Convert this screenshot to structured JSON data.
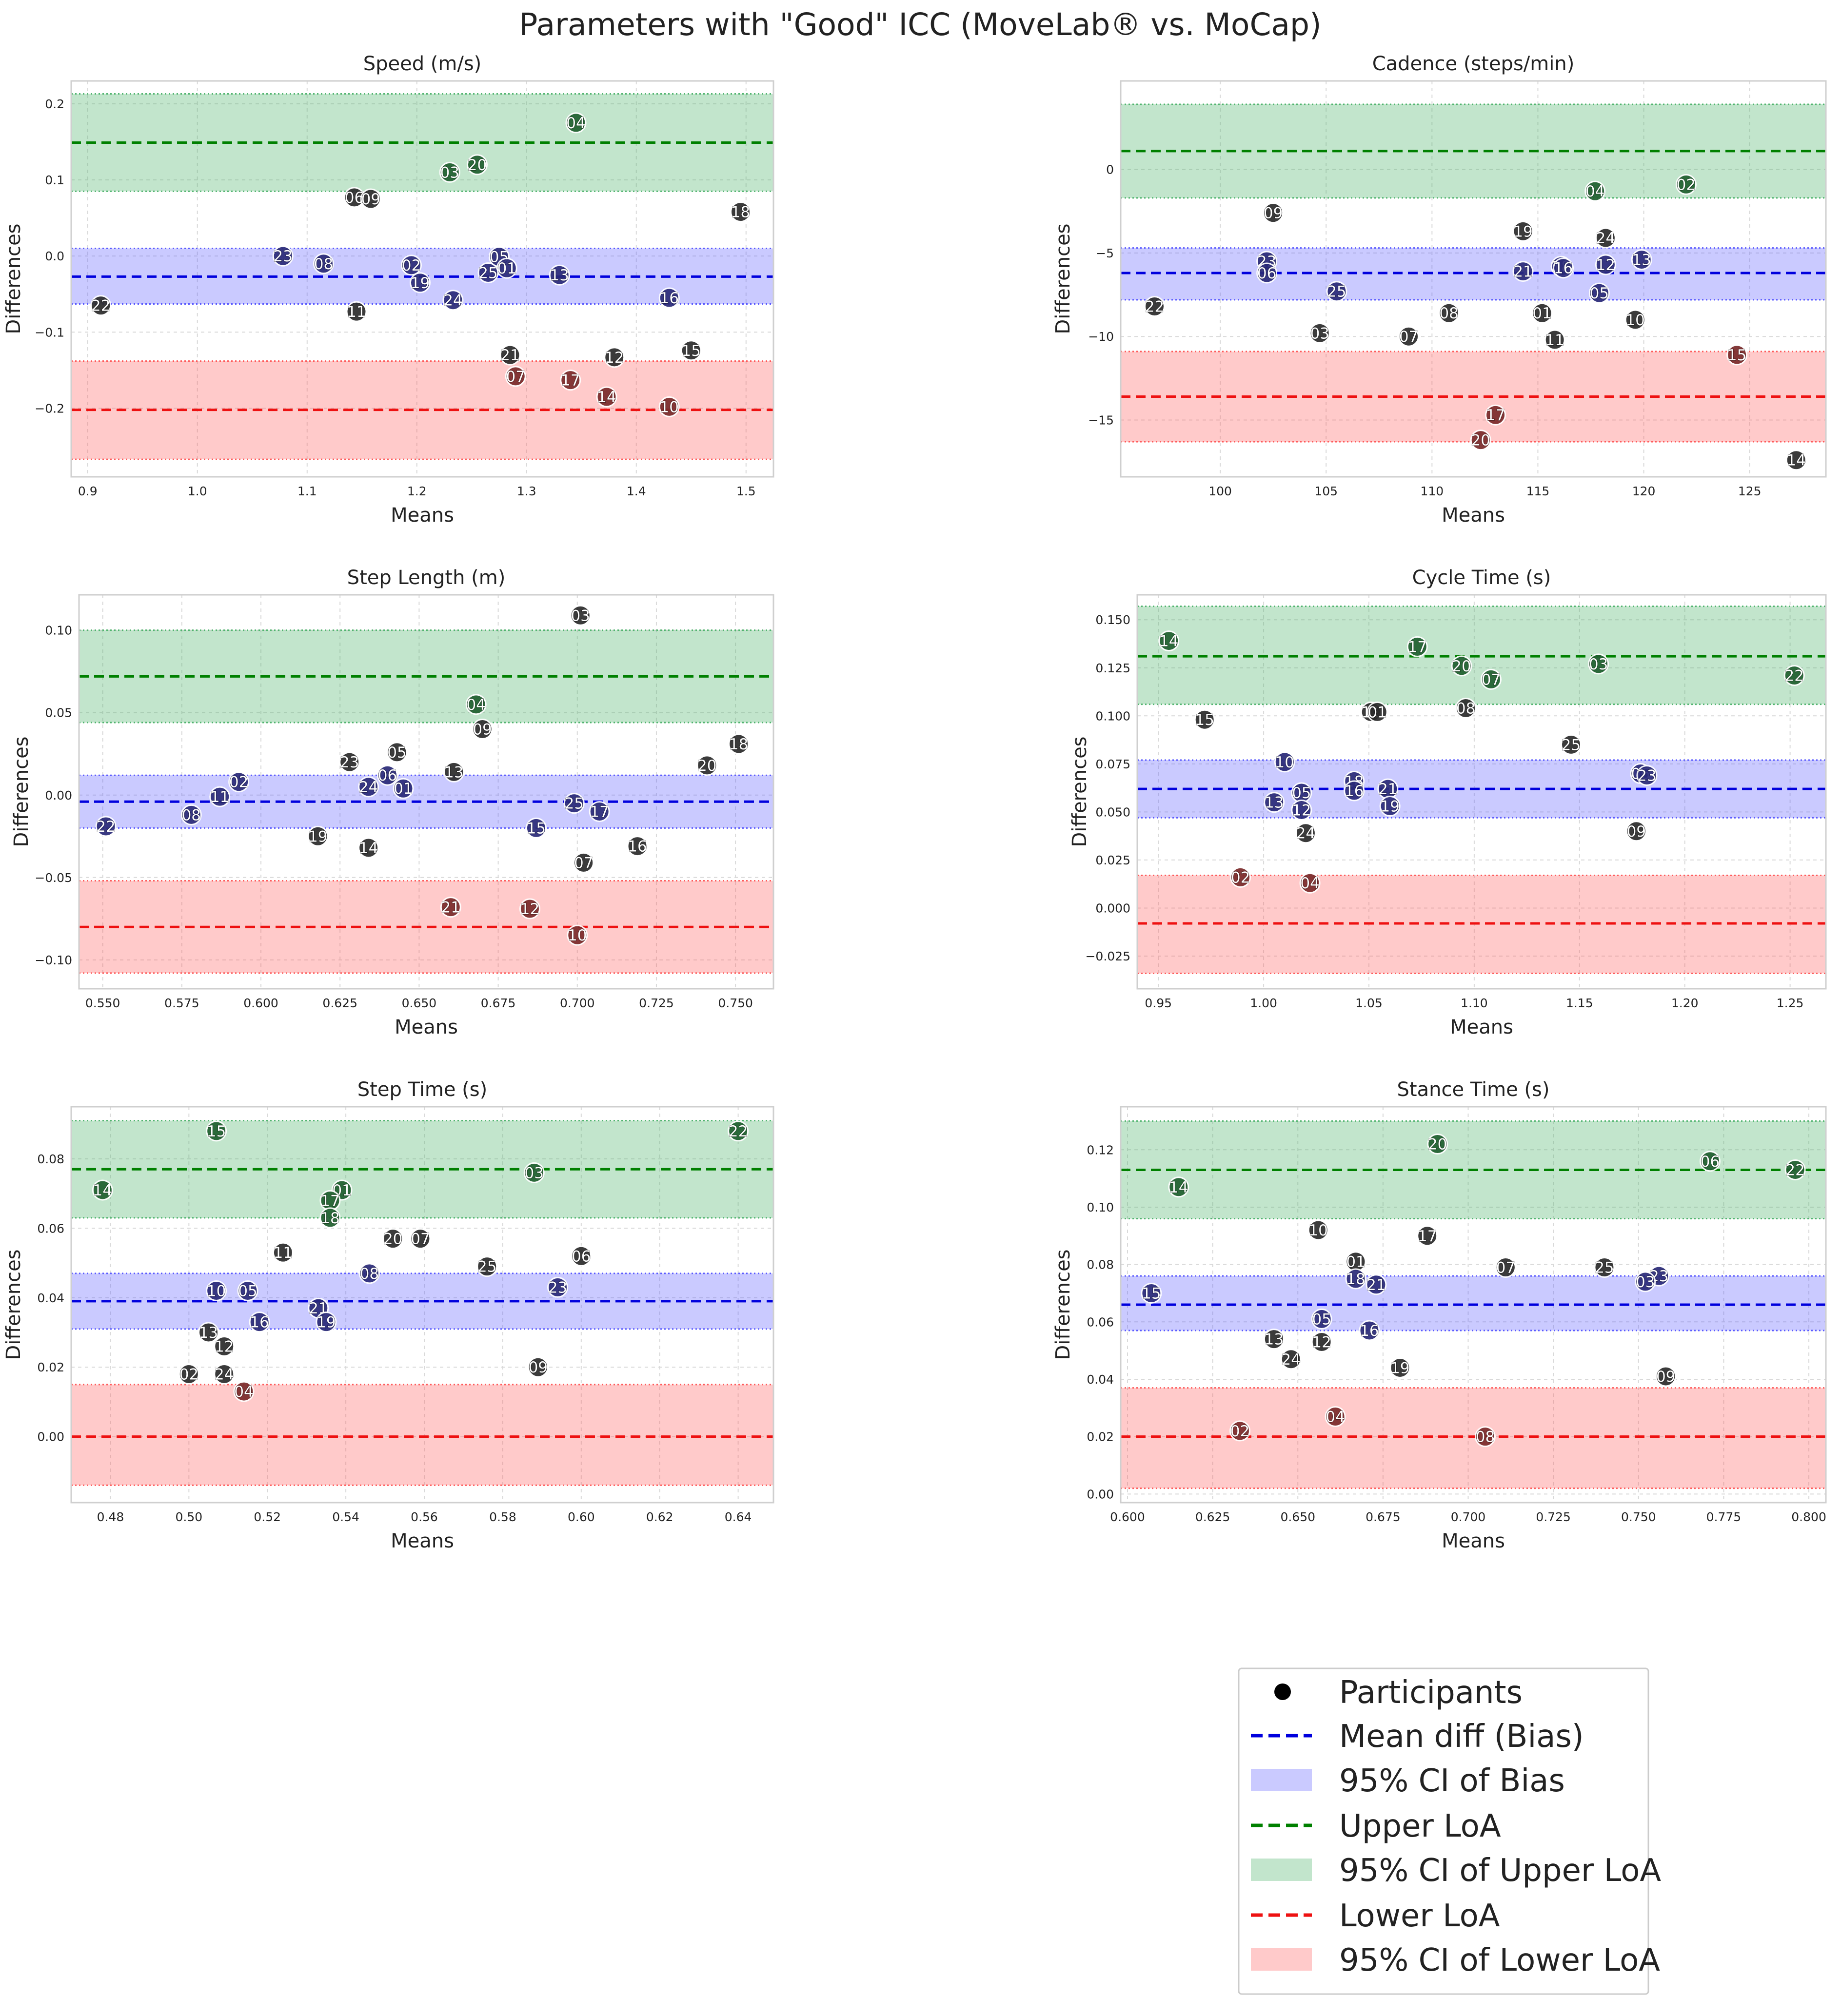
{
  "figure_title": "Parameters with \"Good\" ICC (MoveLab® vs. MoCap)",
  "colors": {
    "upper_line": "#008000",
    "upper_band": "rgba(80,180,110,0.35)",
    "bias_line": "#0000dd",
    "bias_band": "rgba(90,90,255,0.32)",
    "lower_line": "#ee1111",
    "lower_band": "rgba(255,90,90,0.32)",
    "point": "#2b2b2b",
    "point_green": "#1f5f2e",
    "point_blue": "#2a2a78",
    "point_red": "#7a2a2a"
  },
  "legend": {
    "participants": "Participants",
    "bias": "Mean diff (Bias)",
    "bias_ci": "95% CI of Bias",
    "upper": "Upper LoA",
    "upper_ci": "95% CI of Upper LoA",
    "lower": "Lower LoA",
    "lower_ci": "95% CI of Lower LoA"
  },
  "chart_data": [
    {
      "type": "scatter",
      "title": "Speed (m/s)",
      "xlabel": "Means",
      "ylabel": "Differences",
      "xlim": [
        0.885,
        1.525
      ],
      "ylim": [
        -0.29,
        0.23
      ],
      "xticks": [
        0.9,
        1.0,
        1.1,
        1.2,
        1.3,
        1.4,
        1.5
      ],
      "xtick_labels": [
        "0.9",
        "1.0",
        "1.1",
        "1.2",
        "1.3",
        "1.4",
        "1.5"
      ],
      "yticks": [
        -0.2,
        -0.1,
        0.0,
        0.1,
        0.2
      ],
      "ytick_labels": [
        "−0.2",
        "−0.1",
        "0.0",
        "0.1",
        "0.2"
      ],
      "upper_loa": 0.149,
      "upper_ci": [
        0.085,
        0.213
      ],
      "bias": -0.027,
      "bias_ci": [
        -0.063,
        0.01
      ],
      "lower_loa": -0.202,
      "lower_ci": [
        -0.267,
        -0.138
      ],
      "points": [
        {
          "id": "04",
          "x": 1.345,
          "y": 0.175
        },
        {
          "id": "20",
          "x": 1.255,
          "y": 0.12
        },
        {
          "id": "03",
          "x": 1.23,
          "y": 0.11
        },
        {
          "id": "06",
          "x": 1.143,
          "y": 0.077
        },
        {
          "id": "09",
          "x": 1.158,
          "y": 0.075
        },
        {
          "id": "18",
          "x": 1.495,
          "y": 0.058
        },
        {
          "id": "23",
          "x": 1.078,
          "y": 0.0
        },
        {
          "id": "08",
          "x": 1.115,
          "y": -0.01
        },
        {
          "id": "02",
          "x": 1.195,
          "y": -0.012
        },
        {
          "id": "05",
          "x": 1.275,
          "y": -0.001
        },
        {
          "id": "01",
          "x": 1.282,
          "y": -0.016
        },
        {
          "id": "25",
          "x": 1.265,
          "y": -0.022
        },
        {
          "id": "13",
          "x": 1.33,
          "y": -0.025
        },
        {
          "id": "19",
          "x": 1.203,
          "y": -0.035
        },
        {
          "id": "24",
          "x": 1.233,
          "y": -0.058
        },
        {
          "id": "16",
          "x": 1.43,
          "y": -0.055
        },
        {
          "id": "22",
          "x": 0.912,
          "y": -0.065
        },
        {
          "id": "11",
          "x": 1.145,
          "y": -0.073
        },
        {
          "id": "21",
          "x": 1.285,
          "y": -0.13
        },
        {
          "id": "07",
          "x": 1.29,
          "y": -0.158
        },
        {
          "id": "17",
          "x": 1.34,
          "y": -0.163
        },
        {
          "id": "12",
          "x": 1.38,
          "y": -0.133
        },
        {
          "id": "15",
          "x": 1.45,
          "y": -0.124
        },
        {
          "id": "14",
          "x": 1.373,
          "y": -0.185
        },
        {
          "id": "10",
          "x": 1.43,
          "y": -0.198
        }
      ]
    },
    {
      "type": "scatter",
      "title": "Cadence (steps/min)",
      "xlabel": "Means",
      "ylabel": "Differences",
      "xlim": [
        95.3,
        128.6
      ],
      "ylim": [
        -18.4,
        5.3
      ],
      "xticks": [
        100,
        105,
        110,
        115,
        120,
        125
      ],
      "xtick_labels": [
        "100",
        "105",
        "110",
        "115",
        "120",
        "125"
      ],
      "yticks": [
        -15,
        -10,
        -5,
        0
      ],
      "ytick_labels": [
        "−15",
        "−10",
        "−5",
        "0"
      ],
      "upper_loa": 1.1,
      "upper_ci": [
        -1.7,
        3.9
      ],
      "bias": -6.2,
      "bias_ci": [
        -7.8,
        -4.7
      ],
      "lower_loa": -13.6,
      "lower_ci": [
        -16.3,
        -10.9
      ],
      "points": [
        {
          "id": "04",
          "x": 117.7,
          "y": -1.3
        },
        {
          "id": "02",
          "x": 122.0,
          "y": -0.9
        },
        {
          "id": "09",
          "x": 102.5,
          "y": -2.6
        },
        {
          "id": "19",
          "x": 114.3,
          "y": -3.7
        },
        {
          "id": "24",
          "x": 118.2,
          "y": -4.1
        },
        {
          "id": "23",
          "x": 102.2,
          "y": -5.5
        },
        {
          "id": "13",
          "x": 119.9,
          "y": -5.4
        },
        {
          "id": "12",
          "x": 118.2,
          "y": -5.7
        },
        {
          "id": "18",
          "x": 116.1,
          "y": -5.8
        },
        {
          "id": "16",
          "x": 116.2,
          "y": -5.9
        },
        {
          "id": "21",
          "x": 114.3,
          "y": -6.1
        },
        {
          "id": "06",
          "x": 102.2,
          "y": -6.2
        },
        {
          "id": "25",
          "x": 105.5,
          "y": -7.3
        },
        {
          "id": "05",
          "x": 117.9,
          "y": -7.4
        },
        {
          "id": "22",
          "x": 96.9,
          "y": -8.2
        },
        {
          "id": "08",
          "x": 110.8,
          "y": -8.6
        },
        {
          "id": "01",
          "x": 115.2,
          "y": -8.6
        },
        {
          "id": "10",
          "x": 119.6,
          "y": -9.0
        },
        {
          "id": "03",
          "x": 104.7,
          "y": -9.8
        },
        {
          "id": "07",
          "x": 108.9,
          "y": -10.0
        },
        {
          "id": "11",
          "x": 115.8,
          "y": -10.2
        },
        {
          "id": "15",
          "x": 124.4,
          "y": -11.1
        },
        {
          "id": "17",
          "x": 113.0,
          "y": -14.7
        },
        {
          "id": "20",
          "x": 112.3,
          "y": -16.2
        },
        {
          "id": "14",
          "x": 127.2,
          "y": -17.4
        }
      ]
    },
    {
      "type": "scatter",
      "title": "Step Length (m)",
      "xlabel": "Means",
      "ylabel": "Differences",
      "xlim": [
        0.5425,
        0.762
      ],
      "ylim": [
        -0.1175,
        0.1215
      ],
      "xticks": [
        0.55,
        0.575,
        0.6,
        0.625,
        0.65,
        0.675,
        0.7,
        0.725,
        0.75
      ],
      "xtick_labels": [
        "0.550",
        "0.575",
        "0.600",
        "0.625",
        "0.650",
        "0.675",
        "0.700",
        "0.725",
        "0.750"
      ],
      "yticks": [
        -0.1,
        -0.05,
        0.0,
        0.05,
        0.1
      ],
      "ytick_labels": [
        "−0.10",
        "−0.05",
        "0.00",
        "0.05",
        "0.10"
      ],
      "upper_loa": 0.072,
      "upper_ci": [
        0.044,
        0.1
      ],
      "bias": -0.004,
      "bias_ci": [
        -0.02,
        0.012
      ],
      "lower_loa": -0.08,
      "lower_ci": [
        -0.108,
        -0.052
      ],
      "points": [
        {
          "id": "03",
          "x": 0.701,
          "y": 0.109
        },
        {
          "id": "04",
          "x": 0.668,
          "y": 0.055
        },
        {
          "id": "09",
          "x": 0.67,
          "y": 0.04
        },
        {
          "id": "18",
          "x": 0.751,
          "y": 0.031
        },
        {
          "id": "05",
          "x": 0.643,
          "y": 0.026
        },
        {
          "id": "23",
          "x": 0.628,
          "y": 0.02
        },
        {
          "id": "20",
          "x": 0.741,
          "y": 0.018
        },
        {
          "id": "13",
          "x": 0.661,
          "y": 0.014
        },
        {
          "id": "06",
          "x": 0.64,
          "y": 0.012
        },
        {
          "id": "02",
          "x": 0.593,
          "y": 0.008
        },
        {
          "id": "24",
          "x": 0.634,
          "y": 0.005
        },
        {
          "id": "01",
          "x": 0.645,
          "y": 0.004
        },
        {
          "id": "11",
          "x": 0.587,
          "y": -0.001
        },
        {
          "id": "25",
          "x": 0.699,
          "y": -0.005
        },
        {
          "id": "17",
          "x": 0.707,
          "y": -0.01
        },
        {
          "id": "08",
          "x": 0.578,
          "y": -0.012
        },
        {
          "id": "22",
          "x": 0.551,
          "y": -0.019
        },
        {
          "id": "15",
          "x": 0.687,
          "y": -0.02
        },
        {
          "id": "19",
          "x": 0.618,
          "y": -0.025
        },
        {
          "id": "14",
          "x": 0.634,
          "y": -0.032
        },
        {
          "id": "16",
          "x": 0.719,
          "y": -0.031
        },
        {
          "id": "07",
          "x": 0.702,
          "y": -0.041
        },
        {
          "id": "21",
          "x": 0.66,
          "y": -0.068
        },
        {
          "id": "12",
          "x": 0.685,
          "y": -0.069
        },
        {
          "id": "10",
          "x": 0.7,
          "y": -0.085
        }
      ]
    },
    {
      "type": "scatter",
      "title": "Cycle Time (s)",
      "xlabel": "Means",
      "ylabel": "Differences",
      "xlim": [
        0.94,
        1.267
      ],
      "ylim": [
        -0.042,
        0.163
      ],
      "xticks": [
        0.95,
        1.0,
        1.05,
        1.1,
        1.15,
        1.2,
        1.25
      ],
      "xtick_labels": [
        "0.95",
        "1.00",
        "1.05",
        "1.10",
        "1.15",
        "1.20",
        "1.25"
      ],
      "yticks": [
        -0.025,
        0.0,
        0.025,
        0.05,
        0.075,
        0.1,
        0.125,
        0.15
      ],
      "ytick_labels": [
        "−0.025",
        "0.000",
        "0.025",
        "0.050",
        "0.075",
        "0.100",
        "0.125",
        "0.150"
      ],
      "upper_loa": 0.131,
      "upper_ci": [
        0.106,
        0.157
      ],
      "bias": 0.062,
      "bias_ci": [
        0.047,
        0.077
      ],
      "lower_loa": -0.008,
      "lower_ci": [
        -0.034,
        0.017
      ],
      "points": [
        {
          "id": "14",
          "x": 0.955,
          "y": 0.139
        },
        {
          "id": "17",
          "x": 1.073,
          "y": 0.136
        },
        {
          "id": "20",
          "x": 1.094,
          "y": 0.126
        },
        {
          "id": "03",
          "x": 1.159,
          "y": 0.127
        },
        {
          "id": "07",
          "x": 1.108,
          "y": 0.119
        },
        {
          "id": "22",
          "x": 1.252,
          "y": 0.121
        },
        {
          "id": "11",
          "x": 1.051,
          "y": 0.102
        },
        {
          "id": "01",
          "x": 1.054,
          "y": 0.102
        },
        {
          "id": "08",
          "x": 1.096,
          "y": 0.104
        },
        {
          "id": "15",
          "x": 0.972,
          "y": 0.098
        },
        {
          "id": "25",
          "x": 1.146,
          "y": 0.085
        },
        {
          "id": "10",
          "x": 1.01,
          "y": 0.076
        },
        {
          "id": "06",
          "x": 1.179,
          "y": 0.07
        },
        {
          "id": "23",
          "x": 1.182,
          "y": 0.069
        },
        {
          "id": "18",
          "x": 1.043,
          "y": 0.066
        },
        {
          "id": "16",
          "x": 1.043,
          "y": 0.061
        },
        {
          "id": "21",
          "x": 1.059,
          "y": 0.062
        },
        {
          "id": "05",
          "x": 1.018,
          "y": 0.06
        },
        {
          "id": "13",
          "x": 1.005,
          "y": 0.055
        },
        {
          "id": "12",
          "x": 1.018,
          "y": 0.051
        },
        {
          "id": "19",
          "x": 1.06,
          "y": 0.053
        },
        {
          "id": "24",
          "x": 1.02,
          "y": 0.039
        },
        {
          "id": "09",
          "x": 1.177,
          "y": 0.04
        },
        {
          "id": "02",
          "x": 0.989,
          "y": 0.016
        },
        {
          "id": "04",
          "x": 1.022,
          "y": 0.013
        }
      ]
    },
    {
      "type": "scatter",
      "title": "Step Time (s)",
      "xlabel": "Means",
      "ylabel": "Differences",
      "xlim": [
        0.47,
        0.649
      ],
      "ylim": [
        -0.019,
        0.095
      ],
      "xticks": [
        0.48,
        0.5,
        0.52,
        0.54,
        0.56,
        0.58,
        0.6,
        0.62,
        0.64
      ],
      "xtick_labels": [
        "0.48",
        "0.50",
        "0.52",
        "0.54",
        "0.56",
        "0.58",
        "0.60",
        "0.62",
        "0.64"
      ],
      "yticks": [
        0.0,
        0.02,
        0.04,
        0.06,
        0.08
      ],
      "ytick_labels": [
        "0.00",
        "0.02",
        "0.04",
        "0.06",
        "0.08"
      ],
      "upper_loa": 0.077,
      "upper_ci": [
        0.063,
        0.091
      ],
      "bias": 0.039,
      "bias_ci": [
        0.031,
        0.047
      ],
      "lower_loa": 0.0,
      "lower_ci": [
        -0.014,
        0.015
      ],
      "points": [
        {
          "id": "15",
          "x": 0.507,
          "y": 0.088
        },
        {
          "id": "22",
          "x": 0.64,
          "y": 0.088
        },
        {
          "id": "03",
          "x": 0.588,
          "y": 0.076
        },
        {
          "id": "14",
          "x": 0.478,
          "y": 0.071
        },
        {
          "id": "01",
          "x": 0.539,
          "y": 0.071
        },
        {
          "id": "17",
          "x": 0.536,
          "y": 0.068
        },
        {
          "id": "18",
          "x": 0.536,
          "y": 0.063
        },
        {
          "id": "20",
          "x": 0.552,
          "y": 0.057
        },
        {
          "id": "07",
          "x": 0.559,
          "y": 0.057
        },
        {
          "id": "11",
          "x": 0.524,
          "y": 0.053
        },
        {
          "id": "06",
          "x": 0.6,
          "y": 0.052
        },
        {
          "id": "25",
          "x": 0.576,
          "y": 0.049
        },
        {
          "id": "08",
          "x": 0.546,
          "y": 0.047
        },
        {
          "id": "23",
          "x": 0.594,
          "y": 0.043
        },
        {
          "id": "10",
          "x": 0.507,
          "y": 0.042
        },
        {
          "id": "05",
          "x": 0.515,
          "y": 0.042
        },
        {
          "id": "21",
          "x": 0.533,
          "y": 0.037
        },
        {
          "id": "16",
          "x": 0.518,
          "y": 0.033
        },
        {
          "id": "19",
          "x": 0.535,
          "y": 0.033
        },
        {
          "id": "13",
          "x": 0.505,
          "y": 0.03
        },
        {
          "id": "12",
          "x": 0.509,
          "y": 0.026
        },
        {
          "id": "09",
          "x": 0.589,
          "y": 0.02
        },
        {
          "id": "02",
          "x": 0.5,
          "y": 0.018
        },
        {
          "id": "24",
          "x": 0.509,
          "y": 0.018
        },
        {
          "id": "04",
          "x": 0.514,
          "y": 0.013
        }
      ]
    },
    {
      "type": "scatter",
      "title": "Stance Time (s)",
      "xlabel": "Means",
      "ylabel": "Differences",
      "xlim": [
        0.598,
        0.805
      ],
      "ylim": [
        -0.003,
        0.135
      ],
      "xticks": [
        0.6,
        0.625,
        0.65,
        0.675,
        0.7,
        0.725,
        0.75,
        0.775,
        0.8
      ],
      "xtick_labels": [
        "0.600",
        "0.625",
        "0.650",
        "0.675",
        "0.700",
        "0.725",
        "0.750",
        "0.775",
        "0.800"
      ],
      "yticks": [
        0.0,
        0.02,
        0.04,
        0.06,
        0.08,
        0.1,
        0.12
      ],
      "ytick_labels": [
        "0.00",
        "0.02",
        "0.04",
        "0.06",
        "0.08",
        "0.10",
        "0.12"
      ],
      "upper_loa": 0.113,
      "upper_ci": [
        0.096,
        0.13
      ],
      "bias": 0.066,
      "bias_ci": [
        0.057,
        0.076
      ],
      "lower_loa": 0.02,
      "lower_ci": [
        0.002,
        0.037
      ],
      "points": [
        {
          "id": "20",
          "x": 0.691,
          "y": 0.122
        },
        {
          "id": "06",
          "x": 0.771,
          "y": 0.116
        },
        {
          "id": "22",
          "x": 0.796,
          "y": 0.113
        },
        {
          "id": "14",
          "x": 0.615,
          "y": 0.107
        },
        {
          "id": "10",
          "x": 0.656,
          "y": 0.092
        },
        {
          "id": "17",
          "x": 0.688,
          "y": 0.09
        },
        {
          "id": "01",
          "x": 0.667,
          "y": 0.081
        },
        {
          "id": "07",
          "x": 0.711,
          "y": 0.079
        },
        {
          "id": "25",
          "x": 0.74,
          "y": 0.079
        },
        {
          "id": "23",
          "x": 0.756,
          "y": 0.076
        },
        {
          "id": "03",
          "x": 0.752,
          "y": 0.074
        },
        {
          "id": "18",
          "x": 0.667,
          "y": 0.075
        },
        {
          "id": "21",
          "x": 0.673,
          "y": 0.073
        },
        {
          "id": "15",
          "x": 0.607,
          "y": 0.07
        },
        {
          "id": "05",
          "x": 0.657,
          "y": 0.061
        },
        {
          "id": "16",
          "x": 0.671,
          "y": 0.057
        },
        {
          "id": "13",
          "x": 0.643,
          "y": 0.054
        },
        {
          "id": "12",
          "x": 0.657,
          "y": 0.053
        },
        {
          "id": "24",
          "x": 0.648,
          "y": 0.047
        },
        {
          "id": "19",
          "x": 0.68,
          "y": 0.044
        },
        {
          "id": "09",
          "x": 0.758,
          "y": 0.041
        },
        {
          "id": "04",
          "x": 0.661,
          "y": 0.027
        },
        {
          "id": "02",
          "x": 0.633,
          "y": 0.022
        },
        {
          "id": "08",
          "x": 0.705,
          "y": 0.02
        }
      ]
    }
  ]
}
